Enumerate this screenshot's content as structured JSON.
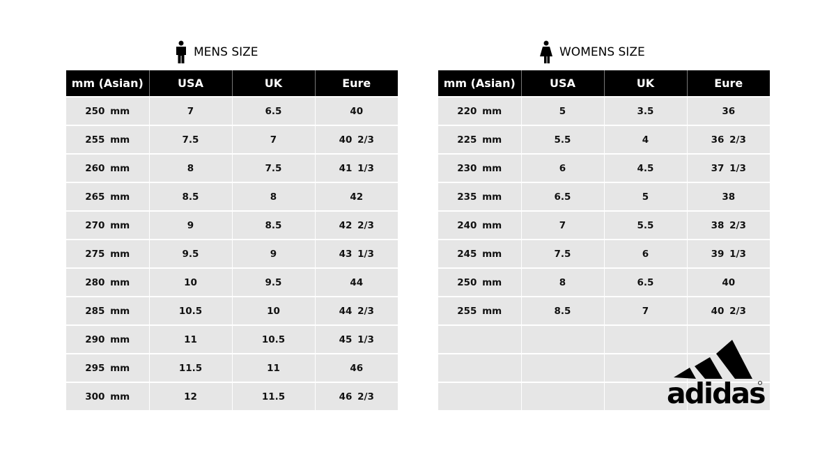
{
  "mens": {
    "title": "MENS SIZE",
    "icon": "man-icon",
    "headers": [
      "mm (Asian)",
      "USA",
      "UK",
      "Eure"
    ],
    "rows": [
      [
        "250 mm",
        "7",
        "6.5",
        "40"
      ],
      [
        "255 mm",
        "7.5",
        "7",
        "40 2/3"
      ],
      [
        "260 mm",
        "8",
        "7.5",
        "41 1/3"
      ],
      [
        "265 mm",
        "8.5",
        "8",
        "42"
      ],
      [
        "270 mm",
        "9",
        "8.5",
        "42 2/3"
      ],
      [
        "275 mm",
        "9.5",
        "9",
        "43 1/3"
      ],
      [
        "280 mm",
        "10",
        "9.5",
        "44"
      ],
      [
        "285 mm",
        "10.5",
        "10",
        "44 2/3"
      ],
      [
        "290 mm",
        "11",
        "10.5",
        "45 1/3"
      ],
      [
        "295 mm",
        "11.5",
        "11",
        "46"
      ],
      [
        "300 mm",
        "12",
        "11.5",
        "46 2/3"
      ]
    ]
  },
  "womens": {
    "title": "WOMENS SIZE",
    "icon": "woman-icon",
    "headers": [
      "mm (Asian)",
      "USA",
      "UK",
      "Eure"
    ],
    "rows": [
      [
        "220 mm",
        "5",
        "3.5",
        "36"
      ],
      [
        "225 mm",
        "5.5",
        "4",
        "36 2/3"
      ],
      [
        "230 mm",
        "6",
        "4.5",
        "37 1/3"
      ],
      [
        "235 mm",
        "6.5",
        "5",
        "38"
      ],
      [
        "240 mm",
        "7",
        "5.5",
        "38 2/3"
      ],
      [
        "245 mm",
        "7.5",
        "6",
        "39 1/3"
      ],
      [
        "250 mm",
        "8",
        "6.5",
        "40"
      ],
      [
        "255 mm",
        "8.5",
        "7",
        "40 2/3"
      ],
      [
        "",
        "",
        "",
        ""
      ],
      [
        "",
        "",
        "",
        ""
      ],
      [
        "",
        "",
        "",
        ""
      ]
    ]
  },
  "logo": {
    "text": "adidas"
  }
}
